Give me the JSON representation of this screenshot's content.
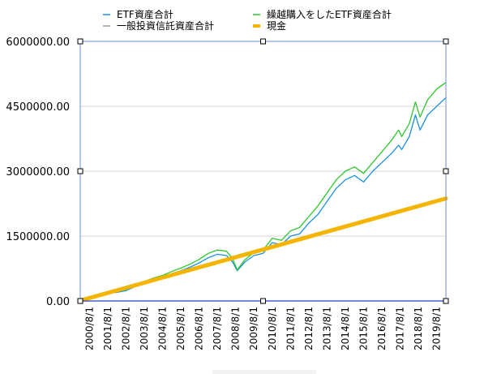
{
  "chart_data": {
    "type": "line",
    "title": "",
    "xlabel": "",
    "ylabel": "",
    "ylim": [
      0,
      6000000
    ],
    "yticks": [
      "0.00",
      "1500000.00",
      "3000000.00",
      "4500000.00",
      "6000000.00"
    ],
    "ytick_values": [
      0,
      1500000,
      3000000,
      4500000,
      6000000
    ],
    "x_tick_labels": [
      "2000/8/1",
      "2001/8/1",
      "2002/8/1",
      "2003/8/1",
      "2004/8/1",
      "2005/8/1",
      "2006/8/1",
      "2007/8/1",
      "2008/8/1",
      "2009/8/1",
      "2010/8/1",
      "2011/8/1",
      "2012/8/1",
      "2013/8/1",
      "2014/8/1",
      "2015/8/1",
      "2016/8/1",
      "2017/8/1",
      "2018/8/1",
      "2019/8/1"
    ],
    "x_start": "2000/8/1",
    "x_end": "2020/8/1",
    "grid": true,
    "legend_position": "top",
    "series": [
      {
        "name": "ETF資産合計",
        "color": "#1a8fe0",
        "x": [
          "2000/8/1",
          "2001/2/1",
          "2001/8/1",
          "2002/2/1",
          "2002/8/1",
          "2003/2/1",
          "2003/8/1",
          "2004/2/1",
          "2004/8/1",
          "2005/2/1",
          "2005/8/1",
          "2006/2/1",
          "2006/8/1",
          "2007/2/1",
          "2007/8/1",
          "2008/2/1",
          "2008/8/1",
          "2008/12/1",
          "2009/3/1",
          "2009/8/1",
          "2010/2/1",
          "2010/8/1",
          "2011/2/1",
          "2011/8/1",
          "2012/2/1",
          "2012/8/1",
          "2013/2/1",
          "2013/8/1",
          "2014/2/1",
          "2014/8/1",
          "2015/2/1",
          "2015/8/1",
          "2016/2/1",
          "2016/8/1",
          "2017/2/1",
          "2017/8/1",
          "2018/1/1",
          "2018/3/1",
          "2018/8/1",
          "2018/12/1",
          "2019/3/1",
          "2019/8/1",
          "2020/2/1",
          "2020/8/1"
        ],
        "values": [
          10000,
          60000,
          120000,
          170000,
          200000,
          240000,
          330000,
          420000,
          500000,
          560000,
          630000,
          700000,
          780000,
          880000,
          1000000,
          1080000,
          1050000,
          900000,
          700000,
          900000,
          1050000,
          1100000,
          1350000,
          1300000,
          1500000,
          1550000,
          1800000,
          2000000,
          2300000,
          2600000,
          2800000,
          2900000,
          2750000,
          3000000,
          3200000,
          3400000,
          3600000,
          3500000,
          3800000,
          4300000,
          3950000,
          4300000,
          4500000,
          4700000
        ]
      },
      {
        "name": "繰越購入をしたETF資産合計",
        "color": "#2dc82d",
        "x": [
          "2000/8/1",
          "2001/2/1",
          "2001/8/1",
          "2002/2/1",
          "2002/8/1",
          "2003/2/1",
          "2003/8/1",
          "2004/2/1",
          "2004/8/1",
          "2005/2/1",
          "2005/8/1",
          "2006/2/1",
          "2006/8/1",
          "2007/2/1",
          "2007/8/1",
          "2008/2/1",
          "2008/8/1",
          "2008/12/1",
          "2009/3/1",
          "2009/8/1",
          "2010/2/1",
          "2010/8/1",
          "2011/2/1",
          "2011/8/1",
          "2012/2/1",
          "2012/8/1",
          "2013/2/1",
          "2013/8/1",
          "2014/2/1",
          "2014/8/1",
          "2015/2/1",
          "2015/8/1",
          "2016/2/1",
          "2016/8/1",
          "2017/2/1",
          "2017/8/1",
          "2018/1/1",
          "2018/3/1",
          "2018/8/1",
          "2018/12/1",
          "2019/3/1",
          "2019/8/1",
          "2020/2/1",
          "2020/8/1"
        ],
        "values": [
          10000,
          70000,
          130000,
          180000,
          220000,
          260000,
          350000,
          450000,
          530000,
          590000,
          680000,
          760000,
          850000,
          960000,
          1100000,
          1180000,
          1150000,
          980000,
          720000,
          950000,
          1120000,
          1180000,
          1450000,
          1400000,
          1620000,
          1700000,
          1950000,
          2200000,
          2500000,
          2800000,
          3000000,
          3100000,
          2950000,
          3200000,
          3450000,
          3700000,
          3950000,
          3800000,
          4100000,
          4600000,
          4250000,
          4650000,
          4900000,
          5050000
        ]
      },
      {
        "name": "一般投資信託資産合計",
        "color": "#999999",
        "x": [],
        "values": []
      },
      {
        "name": "現金",
        "color": "#f5b400",
        "x": [
          "2000/8/1",
          "2020/8/1"
        ],
        "values": [
          10000,
          2370000
        ]
      }
    ]
  }
}
